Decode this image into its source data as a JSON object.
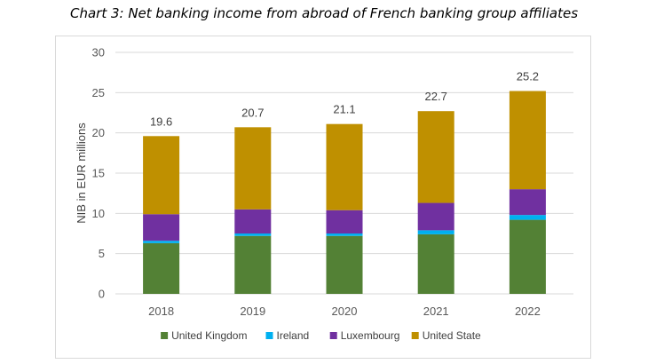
{
  "title": "Chart 3: Net banking income from abroad of French banking group affiliates",
  "chart_data": {
    "type": "bar",
    "stacked": true,
    "categories": [
      "2018",
      "2019",
      "2020",
      "2021",
      "2022"
    ],
    "series": [
      {
        "name": "United Kingdom",
        "color": "#538135",
        "values": [
          6.3,
          7.2,
          7.2,
          7.4,
          9.2
        ]
      },
      {
        "name": "Ireland",
        "color": "#00b0f0",
        "values": [
          0.3,
          0.3,
          0.3,
          0.5,
          0.6
        ]
      },
      {
        "name": "Luxembourg",
        "color": "#7030a0",
        "values": [
          3.3,
          3.0,
          2.9,
          3.4,
          3.2
        ]
      },
      {
        "name": "United State",
        "color": "#bf9000",
        "values": [
          9.7,
          10.2,
          10.7,
          11.4,
          12.2
        ]
      }
    ],
    "totals": [
      "19.6",
      "20.7",
      "21.1",
      "22.7",
      "25.2"
    ],
    "ylabel": "NIB in EUR millions",
    "xlabel": "",
    "ylim": [
      0,
      30
    ],
    "yticks": [
      0,
      5,
      10,
      15,
      20,
      25,
      30
    ],
    "grid": true,
    "legend": "bottom"
  }
}
